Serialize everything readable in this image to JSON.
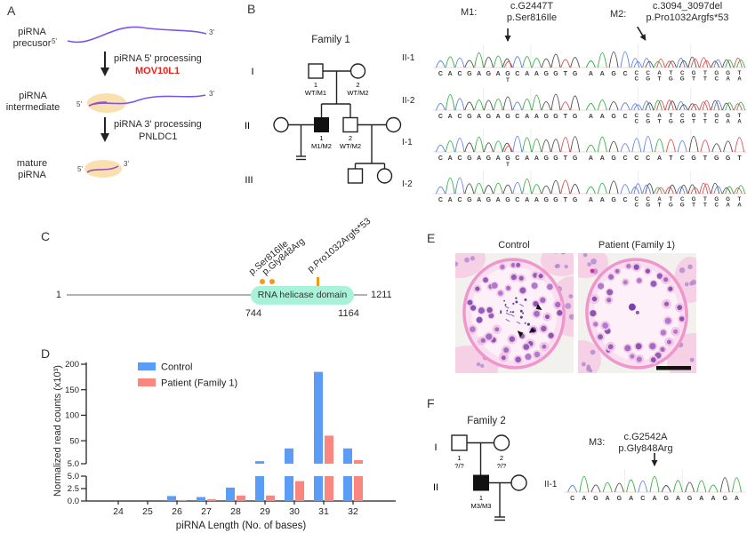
{
  "colors": {
    "trace_A": "#2fae3e",
    "trace_C": "#5b7fe8",
    "trace_G": "#4a4a4a",
    "trace_T": "#e04848",
    "control_bar": "#5b9cf6",
    "patient_bar": "#f9867f",
    "domain_box": "#a9f2da",
    "mutation_marker": "#f09a18",
    "mov10l1_red": "#e8231d",
    "rna_purple": "#7d55e6",
    "oval_fill": "#fae0ae",
    "oval_line": "#9b4fc0"
  },
  "panel_a": {
    "label": "A",
    "stage_precursor": "piRNA\nprecusor",
    "stage_intermediate": "piRNA\nintermediate",
    "stage_mature": "mature\npiRNA",
    "five": "5'",
    "three": "3'",
    "step1_line1": "piRNA 5' processing",
    "step1_line2": "MOV10L1",
    "step2_line1": "piRNA 3' processing",
    "step2_line2": "PNLDC1"
  },
  "panel_b": {
    "label": "B",
    "family_title": "Family 1",
    "gen": [
      "I",
      "II",
      "III"
    ],
    "individuals": {
      "i1_num": "1",
      "i1_gt": "WT/M1",
      "i2_num": "2",
      "i2_gt": "WT/M2",
      "ii1_num": "1",
      "ii1_gt": "M1/M2",
      "ii2_num": "2",
      "ii2_gt": "WT/M2"
    },
    "row_labels": [
      "II-1",
      "II-2",
      "I-1",
      "I-2"
    ],
    "m1": {
      "name": "M1:",
      "mut1": "c.G2447T",
      "mut2": "p.Ser816Ile",
      "sequence": "CACGAGAGCAAGGTG",
      "het_index": 7,
      "het_base": "T",
      "rows": [
        {
          "id": "II-1",
          "het": true,
          "arrow": true
        },
        {
          "id": "II-2",
          "het": false,
          "arrow": false
        },
        {
          "id": "I-1",
          "het": true,
          "arrow": false
        },
        {
          "id": "I-2",
          "het": false,
          "arrow": false
        }
      ]
    },
    "m2": {
      "name": "M2:",
      "mut1": "c.3094_3097del",
      "mut2": "p.Pro1032Argfs*53",
      "seq_top": "AAGCCCATCGTGGT",
      "seq_bottom": "CGTGGTTCAA",
      "bottom_offset": 4,
      "rows": [
        {
          "id": "II-1",
          "het": true,
          "arrow": true
        },
        {
          "id": "II-2",
          "het": true,
          "arrow": false
        },
        {
          "id": "I-1",
          "het": false,
          "arrow": false
        },
        {
          "id": "I-2",
          "het": true,
          "arrow": false
        }
      ]
    }
  },
  "panel_c": {
    "label": "C",
    "start": "1",
    "end": "1211",
    "domain_start": "744",
    "domain_end": "1164",
    "domain_label": "RNA helicase domain",
    "mut_ser": "p.Ser816Ile",
    "mut_gly": "p.Gly848Arg",
    "mut_pro": "p.Pro1032Argfs*53"
  },
  "panel_d_label": "D",
  "chart_data": {
    "type": "bar",
    "categories": [
      24,
      25,
      26,
      27,
      28,
      29,
      30,
      31,
      32
    ],
    "series": [
      {
        "name": "Control",
        "color_key": "control_bar",
        "values": [
          0,
          0,
          1.0,
          0.8,
          2.7,
          10,
          35,
          185,
          35
        ]
      },
      {
        "name": "Patient (Family 1)",
        "color_key": "patient_bar",
        "values": [
          0,
          0,
          0.2,
          0.35,
          1.1,
          1.1,
          4.0,
          60,
          12
        ]
      }
    ],
    "xlabel": "piRNA Length (No. of bases)",
    "ylabel": "Normalized read counts (x10³)",
    "axis_break": {
      "lower_ticks": [
        0,
        2.5,
        5
      ],
      "lower_tick_labels": [
        "0.0",
        "2.5",
        "5.0"
      ],
      "upper_ticks": [
        5,
        50,
        100,
        150,
        200
      ],
      "upper_tick_labels": [
        "5.0",
        "50",
        "100",
        "150",
        "200"
      ],
      "lower_max": 5,
      "upper_min": 5,
      "upper_max": 200
    },
    "grid": false,
    "legend_position": "top-left"
  },
  "panel_e": {
    "label": "E",
    "title_control": "Control",
    "title_patient": "Patient (Family 1)",
    "arrowhead_count": 3,
    "has_scale_bar": true
  },
  "panel_f": {
    "label": "F",
    "family_title": "Family 2",
    "gen": [
      "I",
      "II"
    ],
    "individuals": {
      "i1_num": "1",
      "i1_gt": "?/?",
      "i2_num": "2",
      "i2_gt": "?/?",
      "ii1_num": "1",
      "ii1_gt": "M3/M3"
    },
    "m3": {
      "name": "M3:",
      "mut1": "c.G2542A",
      "mut2": "p.Gly848Arg",
      "row_label": "II-1",
      "sequence": "CAGAGACAGAGAAGA",
      "arrow_index": 7
    }
  }
}
